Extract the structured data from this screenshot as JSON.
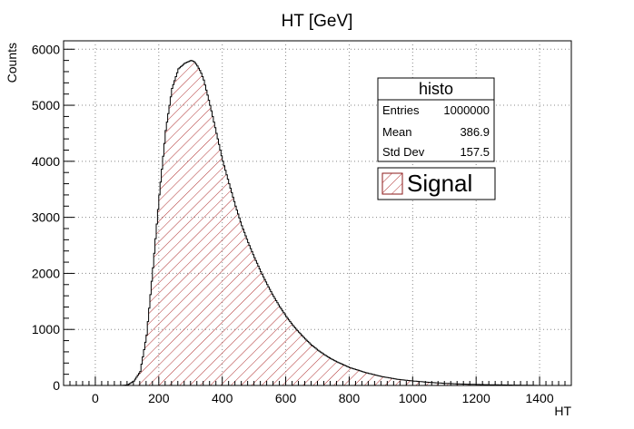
{
  "chart_data": {
    "type": "histogram",
    "title": "HT [GeV]",
    "xlabel": "HT",
    "ylabel": "Counts",
    "xlim": [
      -100,
      1500
    ],
    "ylim": [
      0,
      6150
    ],
    "x_ticks": [
      0,
      200,
      400,
      600,
      800,
      1000,
      1200,
      1400
    ],
    "y_ticks": [
      0,
      1000,
      2000,
      3000,
      4000,
      5000,
      6000
    ],
    "grid": true,
    "series": [
      {
        "name": "Signal",
        "color": "#8b1a1a",
        "fill": "hatched",
        "x": [
          80,
          100,
          120,
          140,
          160,
          180,
          200,
          220,
          240,
          260,
          280,
          300,
          310,
          320,
          330,
          340,
          360,
          380,
          400,
          420,
          440,
          460,
          480,
          500,
          520,
          540,
          560,
          580,
          600,
          620,
          640,
          660,
          680,
          700,
          720,
          740,
          760,
          780,
          800,
          850,
          900,
          950,
          1000,
          1050,
          1100,
          1150,
          1200,
          1250,
          1300,
          1350,
          1400
        ],
        "y": [
          0,
          10,
          80,
          250,
          900,
          2100,
          3400,
          4550,
          5300,
          5650,
          5750,
          5800,
          5780,
          5700,
          5600,
          5450,
          5000,
          4500,
          4000,
          3600,
          3200,
          2850,
          2550,
          2280,
          2030,
          1800,
          1590,
          1400,
          1230,
          1080,
          950,
          830,
          720,
          630,
          550,
          480,
          420,
          370,
          320,
          230,
          160,
          110,
          80,
          55,
          38,
          26,
          18,
          12,
          8,
          5,
          0
        ]
      }
    ],
    "stats_box": {
      "title": "histo",
      "rows": [
        {
          "label": "Entries",
          "value": "1000000"
        },
        {
          "label": "Mean",
          "value": "386.9"
        },
        {
          "label": "Std Dev",
          "value": "157.5"
        }
      ]
    },
    "legend": {
      "placement": "top-right",
      "entries": [
        "Signal"
      ]
    }
  }
}
